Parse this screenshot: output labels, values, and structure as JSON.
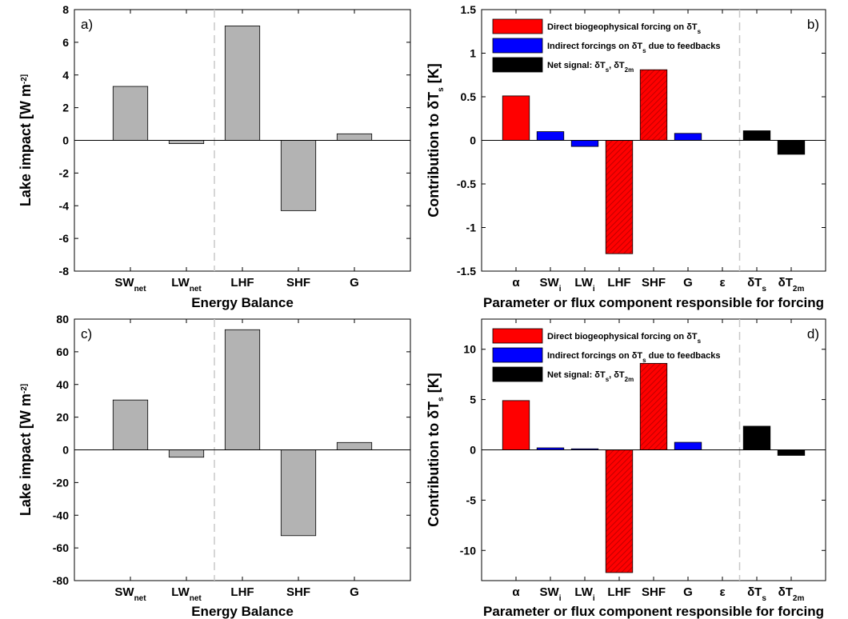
{
  "chart_data": [
    {
      "panel": "a)",
      "type": "bar",
      "categories": [
        "SW_net",
        "LW_net",
        "LHF",
        "SHF",
        "G"
      ],
      "values": [
        3.3,
        -0.2,
        7.0,
        -4.3,
        0.4
      ],
      "colors": [
        "#b3b3b3",
        "#b3b3b3",
        "#b3b3b3",
        "#b3b3b3",
        "#b3b3b3"
      ],
      "xlabel": "Energy Balance",
      "ylabel": "Lake impact  [W m^-2]",
      "ylim": [
        -8,
        8
      ],
      "yticks": [
        -8,
        -6,
        -4,
        -2,
        0,
        2,
        4,
        6,
        8
      ],
      "divider_after_index": 1,
      "grid": false
    },
    {
      "panel": "b)",
      "type": "bar",
      "categories": [
        "α",
        "SW_i",
        "LW_i",
        "LHF",
        "SHF",
        "G",
        "ε",
        "δT_s",
        "δT_2m"
      ],
      "values": [
        0.51,
        0.1,
        -0.07,
        -1.3,
        0.81,
        0.08,
        0.0,
        0.11,
        -0.16
      ],
      "colors": [
        "#ff0000",
        "#0000ff",
        "#0000ff",
        "#ff0000",
        "#ff0000",
        "#0000ff",
        "#0000ff",
        "#000000",
        "#000000"
      ],
      "hatched": [
        false,
        false,
        false,
        true,
        true,
        false,
        false,
        false,
        false
      ],
      "xlabel": "Parameter or flux component responsible for forcing",
      "ylabel": "Contribution to δT_s  [K]",
      "ylim": [
        -1.5,
        1.5
      ],
      "yticks": [
        -1.5,
        -1,
        -0.5,
        0,
        0.5,
        1,
        1.5
      ],
      "divider_after_index": 6,
      "legend": {
        "placement": "top-left",
        "entries": [
          {
            "color": "#ff0000",
            "text": "Direct biogeophysical forcing on    δT_s"
          },
          {
            "color": "#0000ff",
            "text": "Indirect forcings on    δT_s due to feedbacks"
          },
          {
            "color": "#000000",
            "text": "Net signal:  δT_s, δT_2m"
          }
        ]
      },
      "grid": false
    },
    {
      "panel": "c)",
      "type": "bar",
      "categories": [
        "SW_net",
        "LW_net",
        "LHF",
        "SHF",
        "G"
      ],
      "values": [
        30.5,
        -4.5,
        73.5,
        -52.5,
        4.5
      ],
      "colors": [
        "#b3b3b3",
        "#b3b3b3",
        "#b3b3b3",
        "#b3b3b3",
        "#b3b3b3"
      ],
      "xlabel": "Energy Balance",
      "ylabel": "Lake impact  [W m^-2]",
      "ylim": [
        -80,
        80
      ],
      "yticks": [
        -80,
        -60,
        -40,
        -20,
        0,
        20,
        40,
        60,
        80
      ],
      "divider_after_index": 1,
      "grid": false
    },
    {
      "panel": "d)",
      "type": "bar",
      "categories": [
        "α",
        "SW_i",
        "LW_i",
        "LHF",
        "SHF",
        "G",
        "ε",
        "δT_s",
        "δT_2m"
      ],
      "values": [
        4.9,
        0.2,
        0.1,
        -12.2,
        8.6,
        0.75,
        0.0,
        2.35,
        -0.55
      ],
      "colors": [
        "#ff0000",
        "#0000ff",
        "#0000ff",
        "#ff0000",
        "#ff0000",
        "#0000ff",
        "#0000ff",
        "#000000",
        "#000000"
      ],
      "hatched": [
        false,
        false,
        false,
        true,
        true,
        false,
        false,
        false,
        false
      ],
      "xlabel": "Parameter or flux component responsible for forcing",
      "ylabel": "Contribution to δT_s  [K]",
      "ylim": [
        -13,
        13
      ],
      "yticks": [
        -10,
        -5,
        0,
        5,
        10
      ],
      "divider_after_index": 6,
      "legend": {
        "placement": "top-left",
        "entries": [
          {
            "color": "#ff0000",
            "text": "Direct biogeophysical forcing on    δT_s"
          },
          {
            "color": "#0000ff",
            "text": "Indirect forcings on    δT_s due to feedbacks"
          },
          {
            "color": "#000000",
            "text": "Net signal:  δT_s, δT_2m"
          }
        ]
      },
      "grid": false
    }
  ]
}
